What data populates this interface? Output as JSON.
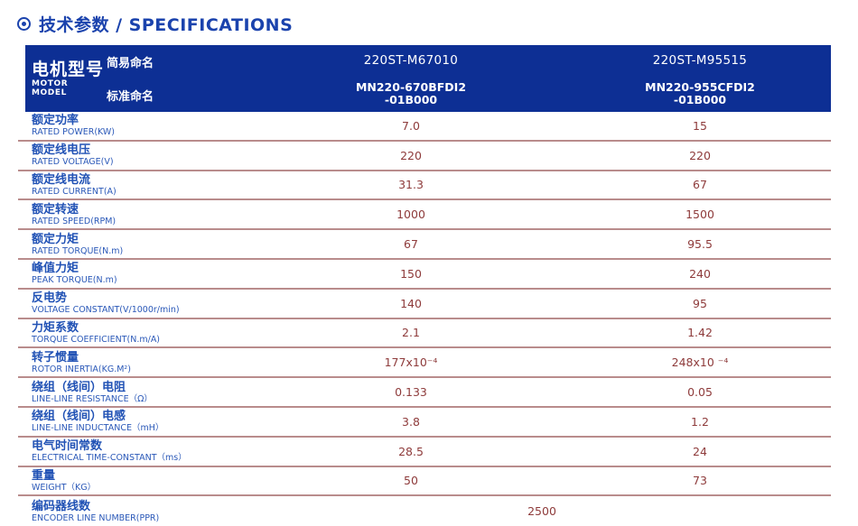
{
  "title": {
    "text": "技术参数 / SPECIFICATIONS",
    "icon": "circle-dot-icon",
    "color": "#1b43ad"
  },
  "colors": {
    "header_bg": "#0d2f94",
    "header_text": "#ffffff",
    "label_blue": "#2152b5",
    "value_maroon": "#8e3b3b",
    "separator_rose": "#b98c8c"
  },
  "table": {
    "header": {
      "model_cn": "电机型号",
      "model_en": "MOTOR MODEL",
      "simple_name_label": "简易命名",
      "standard_name_label": "标准命名",
      "columns": [
        {
          "simple_name": "220ST-M67010",
          "standard_name_line1": "MN220-670BFDI2",
          "standard_name_line2": "-01B000"
        },
        {
          "simple_name": "220ST-M95515",
          "standard_name_line1": "MN220-955CFDI2",
          "standard_name_line2": "-01B000"
        }
      ]
    },
    "rows": [
      {
        "cn": "额定功率",
        "en": "RATED POWER(KW)",
        "v1": "7.0",
        "v2": "15"
      },
      {
        "cn": "额定线电压",
        "en": "RATED VOLTAGE(V)",
        "v1": "220",
        "v2": "220"
      },
      {
        "cn": "额定线电流",
        "en": "RATED CURRENT(A)",
        "v1": "31.3",
        "v2": "67"
      },
      {
        "cn": "额定转速",
        "en": "RATED SPEED(RPM)",
        "v1": "1000",
        "v2": "1500"
      },
      {
        "cn": "额定力矩",
        "en": "RATED TORQUE(N.m)",
        "v1": "67",
        "v2": "95.5"
      },
      {
        "cn": "峰值力矩",
        "en": "PEAK TORQUE(N.m)",
        "v1": "150",
        "v2": "240"
      },
      {
        "cn": "反电势",
        "en": "VOLTAGE CONSTANT(V/1000r/min)",
        "v1": "140",
        "v2": "95"
      },
      {
        "cn": "力矩系数",
        "en": "TORQUE COEFFICIENT(N.m/A)",
        "v1": "2.1",
        "v2": "1.42"
      },
      {
        "cn": "转子惯量",
        "en": "ROTOR INERTIA(KG.M²)",
        "v1": "177x10⁻⁴",
        "v2": "248x10 ⁻⁴"
      },
      {
        "cn": "绕组（线间）电阻",
        "en": "LINE-LINE RESISTANCE（Ω）",
        "v1": "0.133",
        "v2": "0.05"
      },
      {
        "cn": "绕组（线间）电感",
        "en": "LINE-LINE INDUCTANCE（mH）",
        "v1": "3.8",
        "v2": "1.2"
      },
      {
        "cn": "电气时间常数",
        "en": "ELECTRICAL TIME-CONSTANT（ms）",
        "v1": "28.5",
        "v2": "24"
      },
      {
        "cn": "重量",
        "en": "WEIGHT（KG）",
        "v1": "50",
        "v2": "73"
      }
    ],
    "encoder_row": {
      "cn": "编码器线数",
      "en": "ENCODER LINE NUMBER(PPR)",
      "value": "2500"
    }
  }
}
